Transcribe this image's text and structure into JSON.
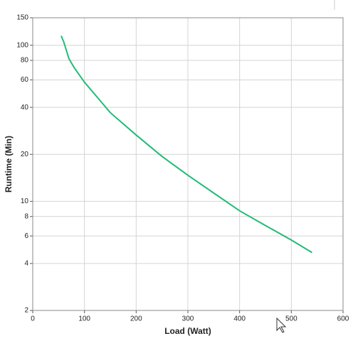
{
  "chart_data": {
    "type": "line",
    "x_label": "Load (Watt)",
    "y_label": "Runtime (Min)",
    "x": [
      55,
      60,
      70,
      80,
      100,
      150,
      200,
      250,
      300,
      350,
      400,
      450,
      500,
      540
    ],
    "series": [
      {
        "color": "#22bb77",
        "values": [
          115,
          105,
          82,
          72,
          58,
          37,
          26.6,
          19.4,
          14.7,
          11.3,
          8.7,
          7,
          5.65,
          4.7
        ]
      }
    ],
    "xlim": [
      0,
      600
    ],
    "xticks": [
      0,
      100,
      200,
      300,
      400,
      500,
      600
    ],
    "ylim": [
      2,
      150
    ],
    "yticks": [
      2,
      4,
      6,
      8,
      10,
      20,
      40,
      60,
      80,
      100,
      150
    ],
    "ylog": true,
    "grid": true
  }
}
